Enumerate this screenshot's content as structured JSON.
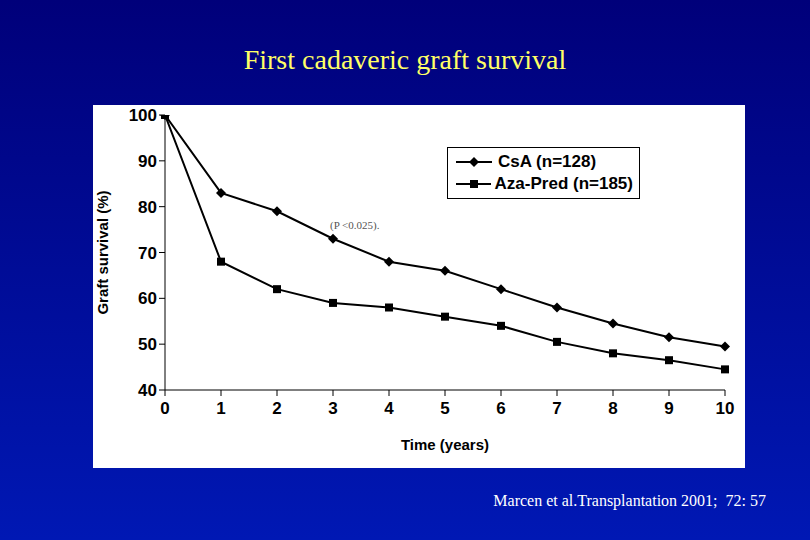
{
  "chart_data": {
    "type": "line",
    "title": "First cadaveric graft survival",
    "x_label": "Time (years)",
    "y_label": "Graft survival (%)",
    "annotations": [
      "(P <0.025).",
      "Marcen et al.Transplantation 2001;  72: 57"
    ],
    "categories": [
      "0",
      "1",
      "2",
      "3",
      "4",
      "5",
      "6",
      "7",
      "8",
      "9",
      "10"
    ],
    "series": [
      {
        "name": "CsA (n=128)",
        "color": "#000000",
        "marker": "diamond",
        "values": [
          100,
          83,
          79,
          73,
          68,
          66,
          62,
          58,
          54.5,
          51.5,
          49.5
        ]
      },
      {
        "name": "Aza-Pred (n=185)",
        "color": "#000000",
        "marker": "square",
        "values": [
          100,
          68,
          62,
          59,
          58,
          56,
          54,
          50.5,
          48,
          46.5,
          44.5
        ]
      }
    ],
    "ylim": [
      40,
      100
    ],
    "yticks": [
      40,
      50,
      60,
      70,
      80,
      90,
      100
    ],
    "grid": false,
    "legend": "top-right"
  }
}
